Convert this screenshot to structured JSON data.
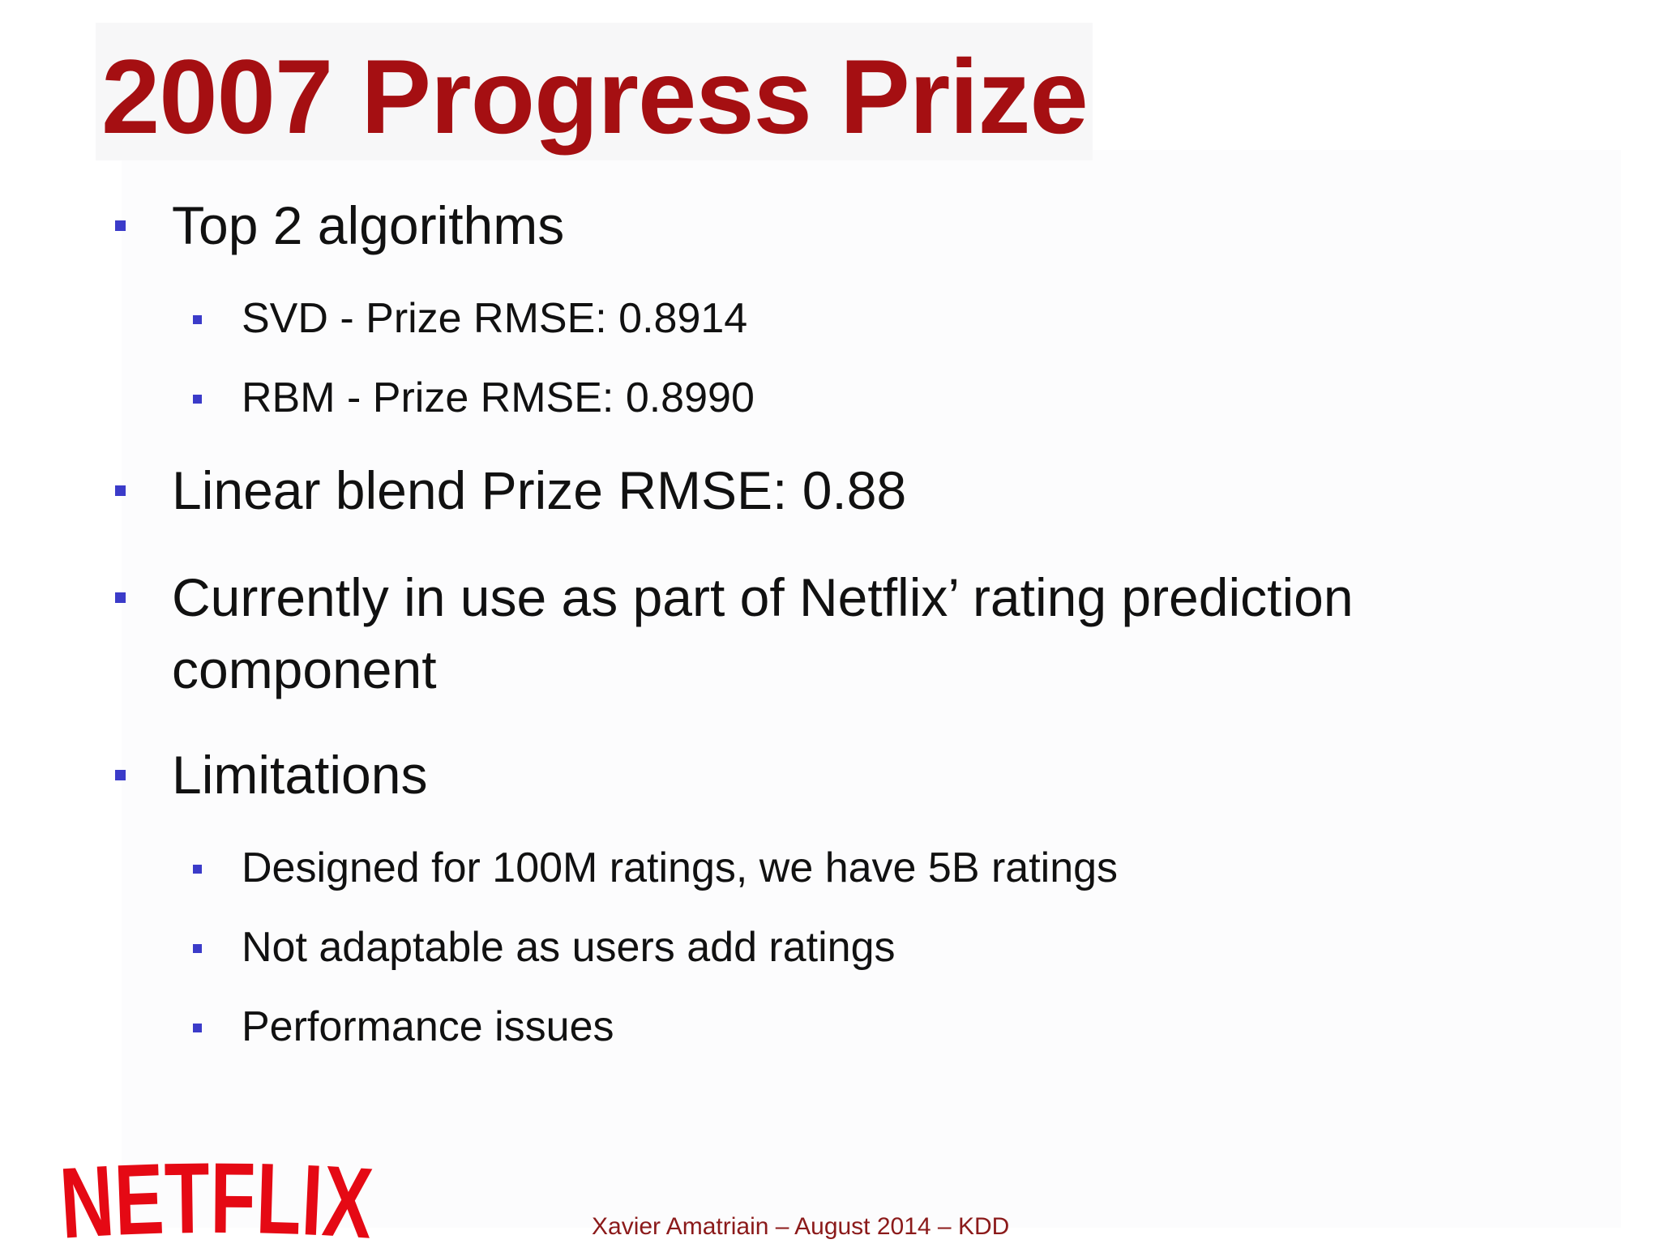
{
  "slide": {
    "title": "2007 Progress Prize",
    "bullets": [
      {
        "text": "Top 2 algorithms",
        "sub": [
          "SVD - Prize RMSE: 0.8914",
          "RBM - Prize RMSE: 0.8990"
        ]
      },
      {
        "text": "Linear blend Prize RMSE: 0.88"
      },
      {
        "text_line1": "Currently in use as part of Netflix’ rating prediction",
        "text_line2": "component"
      },
      {
        "text": "Limitations",
        "sub": [
          "Designed for 100M ratings, we have 5B ratings",
          "Not adaptable as users add ratings",
          "Performance issues"
        ]
      }
    ],
    "logo_text": "NETFLIX",
    "footer": "Xavier Amatriain – August 2014 – KDD"
  },
  "colors": {
    "title": "#a50f12",
    "bullet": "#3b3bc9",
    "logo": "#e50914",
    "footer": "#8b1a1a",
    "body_text": "#111111"
  }
}
